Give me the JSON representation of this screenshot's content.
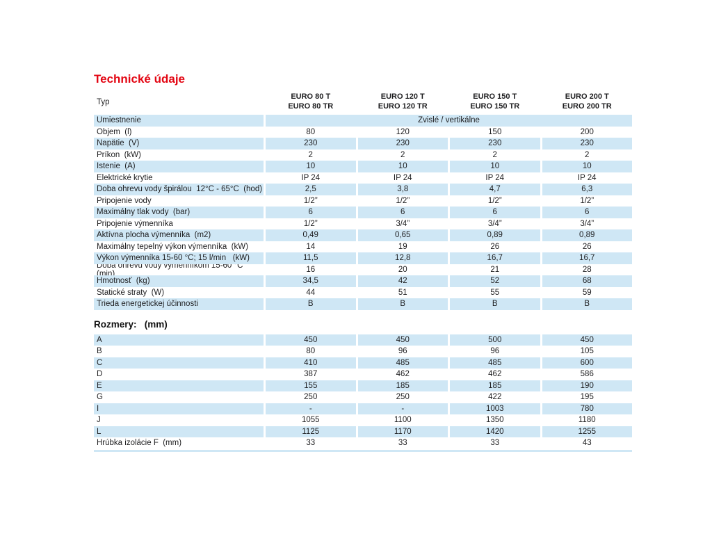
{
  "colors": {
    "accent_red": "#e30613",
    "band_blue": "#cfe7f5",
    "text": "#1d1d1f"
  },
  "title": "Technické údaje",
  "typ_label": "Typ",
  "columns": [
    {
      "line1": "EURO 80 T",
      "line2": "EURO 80 TR"
    },
    {
      "line1": "EURO 120 T",
      "line2": "EURO 120 TR"
    },
    {
      "line1": "EURO 150 T",
      "line2": "EURO 150 TR"
    },
    {
      "line1": "EURO 200 T",
      "line2": "EURO 200 TR"
    }
  ],
  "umiestnenie": {
    "label": "Umiestnenie",
    "value": "Zvislé / vertikálne"
  },
  "spec_rows": [
    {
      "label": "Objem  (l)",
      "values": [
        "80",
        "120",
        "150",
        "200"
      ]
    },
    {
      "label": "Napätie  (V)",
      "values": [
        "230",
        "230",
        "230",
        "230"
      ]
    },
    {
      "label": "Príkon  (kW)",
      "values": [
        "2",
        "2",
        "2",
        "2"
      ]
    },
    {
      "label": "Istenie  (A)",
      "values": [
        "10",
        "10",
        "10",
        "10"
      ]
    },
    {
      "label": "Elektrické krytie",
      "values": [
        "IP 24",
        "IP 24",
        "IP 24",
        "IP 24"
      ]
    },
    {
      "label": "Doba ohrevu vody špirálou  12°C - 65°C  (hod)",
      "values": [
        "2,5",
        "3,8",
        "4,7",
        "6,3"
      ]
    },
    {
      "label": "Pripojenie vody",
      "values": [
        "1/2”",
        "1/2”",
        "1/2”",
        "1/2”"
      ]
    },
    {
      "label": "Maximálny tlak vody  (bar)",
      "values": [
        "6",
        "6",
        "6",
        "6"
      ]
    },
    {
      "label": "Pripojenie výmenníka",
      "values": [
        "1/2”",
        "3/4”",
        "3/4”",
        "3/4”"
      ]
    },
    {
      "label": "Aktívna plocha výmenníka  (m2)",
      "values": [
        "0,49",
        "0,65",
        "0,89",
        "0,89"
      ]
    },
    {
      "label": "Maximálny tepelný výkon výmenníka  (kW)",
      "values": [
        "14",
        "19",
        "26",
        "26"
      ]
    },
    {
      "label": "Výkon výmenníka 15-60 °C; 15 l/min   (kW)",
      "values": [
        "11,5",
        "12,8",
        "16,7",
        "16,7"
      ]
    },
    {
      "label": "Doba ohrevu vody výmenníkom 15-60 °C  (min)",
      "values": [
        "16",
        "20",
        "21",
        "28"
      ]
    },
    {
      "label": "Hmotnosť  (kg)",
      "values": [
        "34,5",
        "42",
        "52",
        "68"
      ]
    },
    {
      "label": "Statické straty  (W)",
      "values": [
        "44",
        "51",
        "55",
        "59"
      ]
    },
    {
      "label": "Trieda energetickej účinnosti",
      "values": [
        "B",
        "B",
        "B",
        "B"
      ]
    }
  ],
  "rozmery_heading": "Rozmery:   (mm)",
  "rozmery_rows": [
    {
      "label": "A",
      "values": [
        "450",
        "450",
        "500",
        "450"
      ]
    },
    {
      "label": "B",
      "values": [
        "80",
        "96",
        "96",
        "105"
      ]
    },
    {
      "label": "C",
      "values": [
        "410",
        "485",
        "485",
        "600"
      ]
    },
    {
      "label": "D",
      "values": [
        "387",
        "462",
        "462",
        "586"
      ]
    },
    {
      "label": "E",
      "values": [
        "155",
        "185",
        "185",
        "190"
      ]
    },
    {
      "label": "G",
      "values": [
        "250",
        "250",
        "422",
        "195"
      ]
    },
    {
      "label": "I",
      "values": [
        "-",
        "-",
        "1003",
        "780"
      ]
    },
    {
      "label": "J",
      "values": [
        "1055",
        "1100",
        "1350",
        "1180"
      ]
    },
    {
      "label": "L",
      "values": [
        "1125",
        "1170",
        "1420",
        "1255"
      ]
    },
    {
      "label": "Hrúbka izolácie F  (mm)",
      "values": [
        "33",
        "33",
        "33",
        "43"
      ]
    }
  ]
}
